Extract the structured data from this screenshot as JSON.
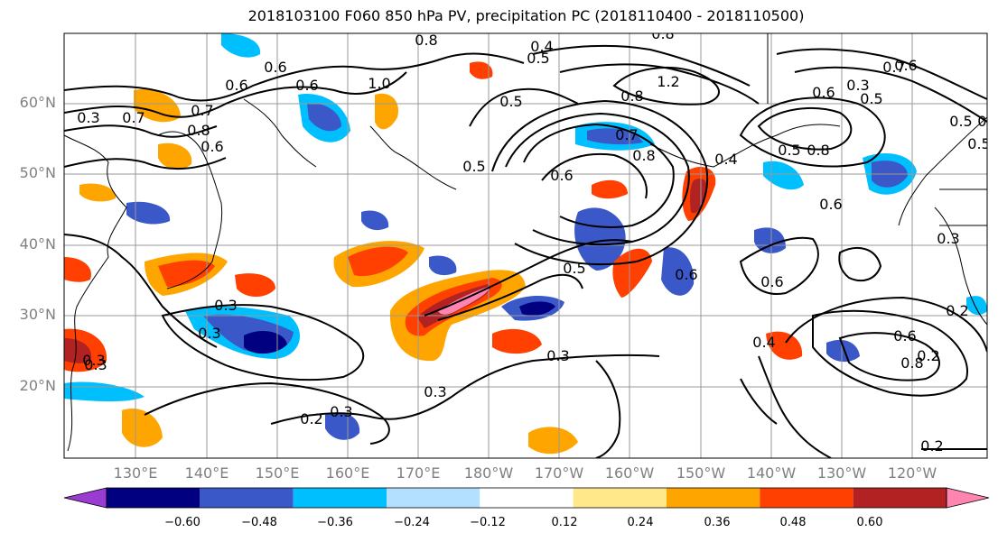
{
  "title": "2018103100 F060 850 hPa PV, precipitation PC (2018110400 - 2018110500)",
  "lat_labels": [
    "60°N",
    "50°N",
    "40°N",
    "30°N",
    "20°N"
  ],
  "lon_labels": [
    "130°E",
    "140°E",
    "150°E",
    "160°E",
    "170°E",
    "180°W",
    "170°W",
    "160°W",
    "150°W",
    "140°W",
    "130°W",
    "120°W"
  ],
  "colorbar": {
    "labels": [
      "−0.60",
      "−0.48",
      "−0.36",
      "−0.24",
      "−0.12",
      "0.12",
      "0.24",
      "0.36",
      "0.48",
      "0.60"
    ],
    "colors": [
      "#9a3bd1",
      "#000080",
      "#3a58c8",
      "#00bfff",
      "#b3e0ff",
      "#ffffff",
      "#ffe88a",
      "#ffa500",
      "#ff4000",
      "#b22222",
      "#ff85b0"
    ]
  },
  "contour_labels": [
    "0.8",
    "0.6",
    "0.5",
    "0.4",
    "0.8",
    "0.7",
    "0.6",
    "0.7",
    "1.0",
    "0.3",
    "0.6",
    "0.8",
    "0.6",
    "0.5",
    "0.8",
    "1.2",
    "0.8",
    "0.6",
    "0.7",
    "0.5",
    "0.8",
    "0.6",
    "0.5",
    "0.6",
    "0.4",
    "0.6",
    "0.5",
    "0.6",
    "0.3",
    "0.2",
    "0.3",
    "0.3",
    "0.2",
    "0.3",
    "0.3",
    "0.3",
    "0.5",
    "0.6",
    "0.6",
    "0.4",
    "0.7",
    "0.3",
    "0.3",
    "0.2",
    "0.3",
    "0.2",
    "0.5",
    "0.5",
    "0.6",
    "0.8"
  ]
}
